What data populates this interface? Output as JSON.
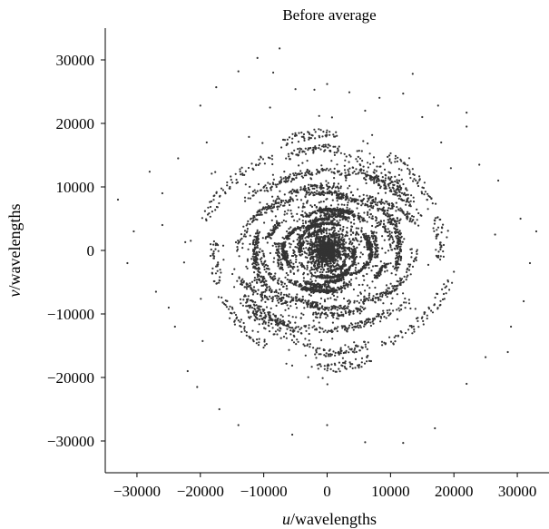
{
  "chart_data": {
    "type": "scatter",
    "title": "Before average",
    "xlabel_italic": "u",
    "xlabel_rest": "/wavelengths",
    "ylabel_italic": "v",
    "ylabel_rest": "/wavelengths",
    "xlim": [
      -35000,
      35000
    ],
    "ylim": [
      -35000,
      35000
    ],
    "xticks": [
      -30000,
      -20000,
      -10000,
      0,
      10000,
      20000,
      30000
    ],
    "yticks": [
      -30000,
      -20000,
      -10000,
      0,
      10000,
      20000,
      30000
    ],
    "xtick_labels": [
      "−30000",
      "−20000",
      "−10000",
      "0",
      "10000",
      "20000",
      "30000"
    ],
    "ytick_labels": [
      "−30000",
      "−20000",
      "−10000",
      "0",
      "10000",
      "20000",
      "30000"
    ],
    "grid": false,
    "legend": "none",
    "marker_color": "#333333",
    "series": [
      {
        "points": [
          [
            -7500,
            31800
          ],
          [
            -11000,
            30300
          ],
          [
            -8500,
            28000
          ],
          [
            -14000,
            28200
          ],
          [
            13500,
            27800
          ],
          [
            0,
            26200
          ],
          [
            -17500,
            25700
          ],
          [
            -5000,
            25400
          ],
          [
            -2000,
            25300
          ],
          [
            3500,
            24900
          ],
          [
            12000,
            24700
          ],
          [
            -20000,
            22800
          ],
          [
            17500,
            22800
          ],
          [
            22000,
            21700
          ],
          [
            22000,
            19500
          ],
          [
            -28000,
            12400
          ],
          [
            -33000,
            8000
          ],
          [
            -26000,
            9000
          ],
          [
            -30500,
            3000
          ],
          [
            -31500,
            -2000
          ],
          [
            -27000,
            -6500
          ],
          [
            -22000,
            -19000
          ],
          [
            -20500,
            -21500
          ],
          [
            -17000,
            -25000
          ],
          [
            -14000,
            -27500
          ],
          [
            -5500,
            -29000
          ],
          [
            0,
            -27500
          ],
          [
            6000,
            -30200
          ],
          [
            12000,
            -30300
          ],
          [
            17000,
            -28000
          ],
          [
            22000,
            -21000
          ],
          [
            25000,
            -16800
          ],
          [
            28500,
            -16000
          ],
          [
            31000,
            -8000
          ],
          [
            32000,
            -2000
          ],
          [
            33000,
            3000
          ],
          [
            30500,
            5000
          ],
          [
            27000,
            11000
          ],
          [
            24000,
            13500
          ],
          [
            26500,
            2500
          ],
          [
            29000,
            -12000
          ],
          [
            -24000,
            -12000
          ],
          [
            -26000,
            4000
          ],
          [
            -23500,
            14500
          ],
          [
            -19000,
            17000
          ],
          [
            18000,
            17000
          ],
          [
            15000,
            21000
          ],
          [
            6000,
            22000
          ],
          [
            -9000,
            22500
          ],
          [
            -25000,
            -9000
          ]
        ]
      }
    ]
  }
}
